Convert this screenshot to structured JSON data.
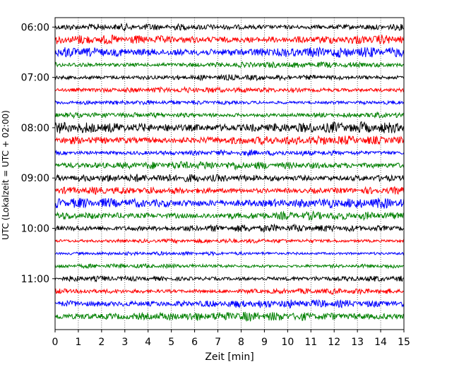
{
  "chart_data": {
    "type": "line",
    "subtype": "seismogram-helicorder",
    "xlabel": "Zeit  [min]",
    "ylabel": "UTC (Lokalzeit = UTC + 02:00)",
    "xlim": [
      0,
      15
    ],
    "x_ticks": [
      "0",
      "1",
      "2",
      "3",
      "4",
      "5",
      "6",
      "7",
      "8",
      "9",
      "10",
      "11",
      "12",
      "13",
      "14",
      "15"
    ],
    "y_ticks": [
      "06:00",
      "07:00",
      "08:00",
      "09:00",
      "10:00",
      "11:00"
    ],
    "grid": "vertical-dotted",
    "line_colors": [
      "#000000",
      "#ff0000",
      "#0000ff",
      "#008000"
    ],
    "traces": [
      {
        "start": "06:00",
        "color": "#000000",
        "amplitude": 0.18
      },
      {
        "start": "06:15",
        "color": "#ff0000",
        "amplitude": 0.25
      },
      {
        "start": "06:30",
        "color": "#0000ff",
        "amplitude": 0.28
      },
      {
        "start": "06:45",
        "color": "#008000",
        "amplitude": 0.16
      },
      {
        "start": "07:00",
        "color": "#000000",
        "amplitude": 0.15
      },
      {
        "start": "07:15",
        "color": "#ff0000",
        "amplitude": 0.15
      },
      {
        "start": "07:30",
        "color": "#0000ff",
        "amplitude": 0.12
      },
      {
        "start": "07:45",
        "color": "#008000",
        "amplitude": 0.15
      },
      {
        "start": "08:00",
        "color": "#000000",
        "amplitude": 0.3
      },
      {
        "start": "08:15",
        "color": "#ff0000",
        "amplitude": 0.25
      },
      {
        "start": "08:30",
        "color": "#0000ff",
        "amplitude": 0.15
      },
      {
        "start": "08:45",
        "color": "#008000",
        "amplitude": 0.22
      },
      {
        "start": "09:00",
        "color": "#000000",
        "amplitude": 0.22
      },
      {
        "start": "09:15",
        "color": "#ff0000",
        "amplitude": 0.2
      },
      {
        "start": "09:30",
        "color": "#0000ff",
        "amplitude": 0.28
      },
      {
        "start": "09:45",
        "color": "#008000",
        "amplitude": 0.22
      },
      {
        "start": "10:00",
        "color": "#000000",
        "amplitude": 0.2
      },
      {
        "start": "10:15",
        "color": "#ff0000",
        "amplitude": 0.12
      },
      {
        "start": "10:30",
        "color": "#0000ff",
        "amplitude": 0.1
      },
      {
        "start": "10:45",
        "color": "#008000",
        "amplitude": 0.12
      },
      {
        "start": "11:00",
        "color": "#000000",
        "amplitude": 0.15
      },
      {
        "start": "11:15",
        "color": "#ff0000",
        "amplitude": 0.15
      },
      {
        "start": "11:30",
        "color": "#0000ff",
        "amplitude": 0.22
      },
      {
        "start": "11:45",
        "color": "#008000",
        "amplitude": 0.25
      }
    ]
  }
}
